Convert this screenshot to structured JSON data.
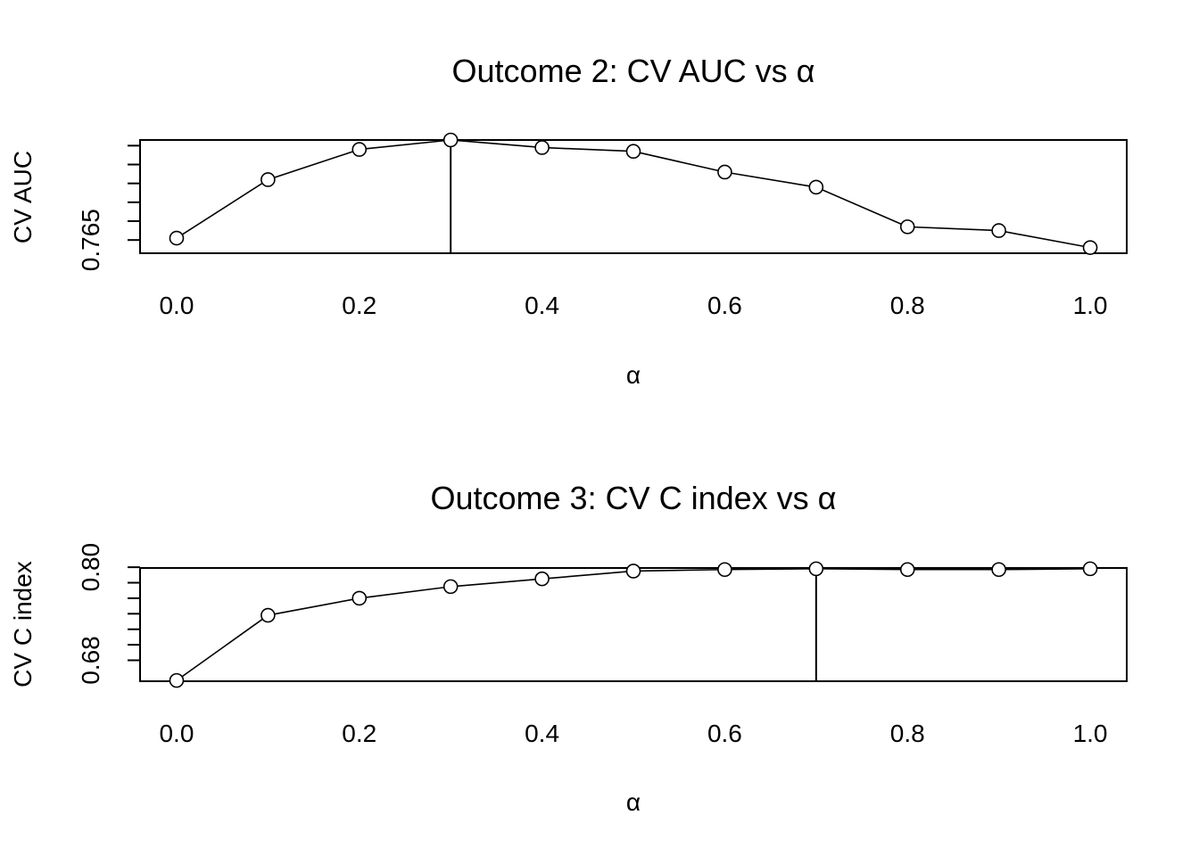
{
  "chart_data": [
    {
      "type": "line",
      "title": "Outcome 2: CV AUC vs  α",
      "xlabel": "α",
      "ylabel": "CV AUC",
      "x": [
        0.0,
        0.1,
        0.2,
        0.3,
        0.4,
        0.5,
        0.6,
        0.7,
        0.8,
        0.9,
        1.0
      ],
      "values": [
        0.7651,
        0.7682,
        0.7698,
        0.7703,
        0.7699,
        0.7697,
        0.7686,
        0.7678,
        0.7657,
        0.7655,
        0.7646
      ],
      "xlim": [
        -0.04,
        1.04
      ],
      "ylim": [
        0.7643,
        0.7703
      ],
      "xticks": [
        0.0,
        0.2,
        0.4,
        0.6,
        0.8,
        1.0
      ],
      "xtick_labels": [
        "0.0",
        "0.2",
        "0.4",
        "0.6",
        "0.8",
        "1.0"
      ],
      "yticks": [
        0.765,
        0.766,
        0.767,
        0.768,
        0.769,
        0.77
      ],
      "ytick_labels": [
        "0.765"
      ],
      "vline_x": 0.3
    },
    {
      "type": "line",
      "title": "Outcome 3: CV C index vs  α",
      "xlabel": "α",
      "ylabel": "CV C index",
      "x": [
        0.0,
        0.1,
        0.2,
        0.3,
        0.4,
        0.5,
        0.6,
        0.7,
        0.8,
        0.9,
        1.0
      ],
      "values": [
        0.654,
        0.738,
        0.76,
        0.775,
        0.785,
        0.795,
        0.797,
        0.798,
        0.797,
        0.797,
        0.798
      ],
      "xlim": [
        -0.04,
        1.04
      ],
      "ylim": [
        0.653,
        0.799
      ],
      "xticks": [
        0.0,
        0.2,
        0.4,
        0.6,
        0.8,
        1.0
      ],
      "xtick_labels": [
        "0.0",
        "0.2",
        "0.4",
        "0.6",
        "0.8",
        "1.0"
      ],
      "yticks": [
        0.68,
        0.7,
        0.72,
        0.74,
        0.76,
        0.78,
        0.8
      ],
      "ytick_labels": [
        "0.68",
        "0.80"
      ],
      "label_ticks": [
        0.68,
        0.8
      ],
      "vline_x": 0.7
    }
  ]
}
